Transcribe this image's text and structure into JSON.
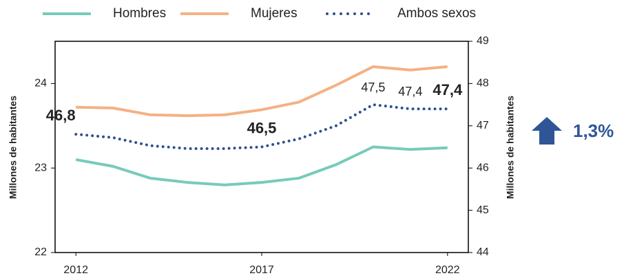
{
  "chart_data": {
    "type": "line",
    "x": [
      2012,
      2013,
      2014,
      2015,
      2016,
      2017,
      2018,
      2019,
      2020,
      2021,
      2022
    ],
    "xlim": [
      2011.44,
      2022.56
    ],
    "xticks": [
      2012,
      2017,
      2022
    ],
    "ylim": [
      22,
      24.5
    ],
    "yticks": [
      22,
      23,
      24
    ],
    "y2lim": [
      44,
      49
    ],
    "y2ticks": [
      44,
      45,
      46,
      47,
      48,
      49
    ],
    "ylabel": "Millones de habitantes",
    "y2label": "Millones de habitantes",
    "annotation": "1,3%",
    "series": [
      {
        "name": "Hombres",
        "color": "#76cbb9",
        "style": "solid",
        "values": [
          23.1,
          23.02,
          22.88,
          22.83,
          22.8,
          22.83,
          22.88,
          23.04,
          23.25,
          23.22,
          23.24
        ]
      },
      {
        "name": "Mujeres",
        "color": "#f4b183",
        "style": "solid",
        "values": [
          23.72,
          23.71,
          23.63,
          23.62,
          23.63,
          23.69,
          23.78,
          23.98,
          24.2,
          24.16,
          24.2
        ]
      },
      {
        "name": "Ambos sexos",
        "color": "#2f4f8f",
        "style": "dotted",
        "axis": "y2",
        "values": [
          46.8,
          46.72,
          46.53,
          46.46,
          46.46,
          46.5,
          46.69,
          47.0,
          47.5,
          47.4,
          47.4
        ],
        "value_labels": [
          "46,8",
          null,
          null,
          null,
          null,
          "46,5",
          null,
          null,
          "47,5",
          "47,4",
          "47,4"
        ]
      }
    ]
  }
}
